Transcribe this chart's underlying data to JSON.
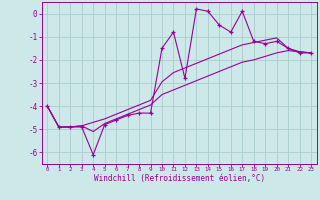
{
  "x": [
    0,
    1,
    2,
    3,
    4,
    5,
    6,
    7,
    8,
    9,
    10,
    11,
    12,
    13,
    14,
    15,
    16,
    17,
    18,
    19,
    20,
    21,
    22,
    23
  ],
  "y_main": [
    -4.0,
    -4.9,
    -4.9,
    -4.9,
    -6.1,
    -4.8,
    -4.6,
    -4.4,
    -4.3,
    -4.3,
    -1.5,
    -0.8,
    -2.8,
    0.2,
    0.1,
    -0.5,
    -0.8,
    0.1,
    -1.2,
    -1.3,
    -1.2,
    -1.5,
    -1.7,
    -1.7
  ],
  "y_low": [
    -4.0,
    -4.9,
    -4.9,
    -4.85,
    -5.1,
    -4.75,
    -4.55,
    -4.35,
    -4.15,
    -3.95,
    -3.5,
    -3.3,
    -3.1,
    -2.9,
    -2.7,
    -2.5,
    -2.3,
    -2.1,
    -2.0,
    -1.85,
    -1.7,
    -1.6,
    -1.65,
    -1.7
  ],
  "y_high": [
    -4.0,
    -4.9,
    -4.9,
    -4.85,
    -4.7,
    -4.55,
    -4.35,
    -4.15,
    -3.95,
    -3.75,
    -2.95,
    -2.55,
    -2.35,
    -2.15,
    -1.95,
    -1.75,
    -1.55,
    -1.35,
    -1.25,
    -1.15,
    -1.05,
    -1.5,
    -1.65,
    -1.7
  ],
  "bg_color": "#cce8e8",
  "line_color": "#990099",
  "grid_color": "#aacccc",
  "xlabel": "Windchill (Refroidissement éolien,°C)",
  "xlim": [
    -0.5,
    23.5
  ],
  "ylim": [
    -6.5,
    0.5
  ],
  "yticks": [
    0,
    -1,
    -2,
    -3,
    -4,
    -5,
    -6
  ],
  "xtick_labels": [
    "0",
    "1",
    "2",
    "3",
    "4",
    "5",
    "6",
    "7",
    "8",
    "9",
    "10",
    "11",
    "12",
    "13",
    "14",
    "15",
    "16",
    "17",
    "18",
    "19",
    "20",
    "21",
    "22",
    "23"
  ]
}
